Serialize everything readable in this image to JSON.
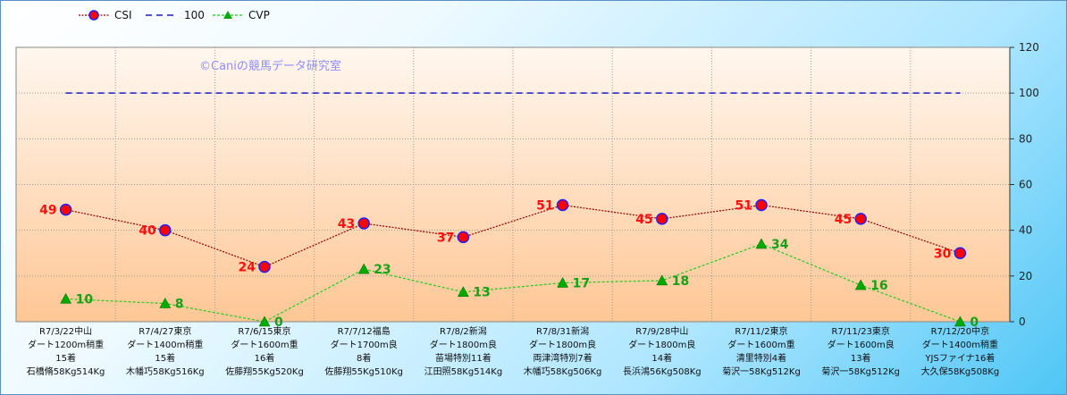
{
  "chart_data": {
    "type": "line",
    "categories": [
      [
        "R7/3/22中山",
        "ダート1200m稍重",
        "15着",
        "石橋脩58Kg514Kg"
      ],
      [
        "R7/4/27東京",
        "ダート1400m稍重",
        "15着",
        "木幡巧58Kg516Kg"
      ],
      [
        "R7/6/15東京",
        "ダート1600m重",
        "16着",
        "佐藤翔55Kg520Kg"
      ],
      [
        "R7/7/12福島",
        "ダート1700m良",
        "8着",
        "佐藤翔55Kg510Kg"
      ],
      [
        "R7/8/2新潟",
        "ダート1800m良",
        "苗場特別11着",
        "江田照58Kg514Kg"
      ],
      [
        "R7/8/31新潟",
        "ダート1800m良",
        "両津湾特別7着",
        "木幡巧58Kg506Kg"
      ],
      [
        "R7/9/28中山",
        "ダート1800m良",
        "14着",
        "長浜鴻56Kg508Kg"
      ],
      [
        "R7/11/2東京",
        "ダート1600m重",
        "清里特別4着",
        "菊沢一58Kg512Kg"
      ],
      [
        "R7/11/23東京",
        "ダート1600m良",
        "13着",
        "菊沢一58Kg512Kg"
      ],
      [
        "R7/12/20中京",
        "ダート1400m稍重",
        "YJSファイナ16着",
        "大久保58Kg508Kg"
      ]
    ],
    "series": [
      {
        "name": "CSI",
        "values": [
          49,
          40,
          24,
          43,
          37,
          51,
          45,
          51,
          45,
          30
        ],
        "color": "#8b0000",
        "marker_color": "#ff0000",
        "marker_edge": "#2020ff"
      },
      {
        "name": "100",
        "values": [
          100,
          100,
          100,
          100,
          100,
          100,
          100,
          100,
          100,
          100
        ],
        "color": "#1a1acc"
      },
      {
        "name": "CVP",
        "values": [
          10,
          8,
          0,
          23,
          13,
          17,
          18,
          34,
          16,
          0
        ],
        "color": "#22cc22",
        "marker_color": "#00aa00"
      }
    ],
    "ylim": [
      0,
      120
    ],
    "yticks": [
      0,
      20,
      40,
      60,
      80,
      100,
      120
    ],
    "grid": true,
    "legend_placement": "top-left",
    "watermark": "©Caniの競馬データ研究室"
  }
}
